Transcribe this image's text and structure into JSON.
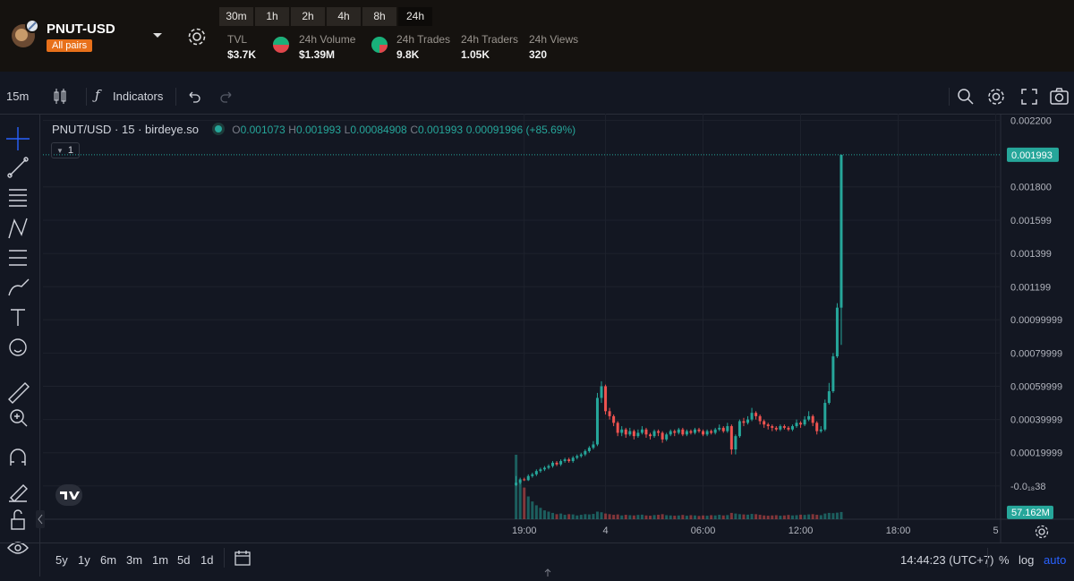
{
  "header": {
    "pair": "PNUT-USD",
    "badge": "All pairs",
    "timeframes": [
      "30m",
      "1h",
      "2h",
      "4h",
      "8h",
      "24h"
    ],
    "active_timeframe": 5,
    "stats": [
      {
        "label": "TVL",
        "value": "$3.7K"
      },
      {
        "label": "24h Volume",
        "value": "$1.39M"
      },
      {
        "label": "24h Trades",
        "value": "9.8K"
      },
      {
        "label": "24h Traders",
        "value": "1.05K"
      },
      {
        "label": "24h Views",
        "value": "320"
      }
    ]
  },
  "toolbar": {
    "interval": "15m",
    "indicators": "Indicators"
  },
  "legend": {
    "symbol": "PNUT/USD · 15 · birdeye.so",
    "letters": [
      "O",
      "H",
      "L",
      "C"
    ],
    "change": "0.00091996 (+85.69%)",
    "badge": "1"
  },
  "bottom_bar": {
    "ranges": [
      "5y",
      "1y",
      "6m",
      "3m",
      "1m",
      "5d",
      "1d"
    ],
    "clock": "14:44:23 (UTC+7)",
    "options": [
      "%",
      "log",
      "auto"
    ]
  },
  "chart_data": {
    "type": "candlestick",
    "up_color": "#26a69a",
    "down_color": "#ef5350",
    "grid": true,
    "x": [
      18.5,
      18.75,
      19,
      19.25,
      19.5,
      19.75,
      20,
      20.25,
      20.5,
      20.75,
      21,
      21.25,
      21.5,
      21.75,
      22,
      22.25,
      22.5,
      22.75,
      23,
      23.25,
      23.5,
      23.75,
      24,
      24.25,
      24.5,
      24.75,
      25,
      25.25,
      25.5,
      25.75,
      26,
      26.25,
      26.5,
      26.75,
      27,
      27.25,
      27.5,
      27.75,
      28,
      28.25,
      28.5,
      28.75,
      29,
      29.25,
      29.5,
      29.75,
      30,
      30.25,
      30.5,
      30.75,
      31,
      31.25,
      31.5,
      31.75,
      32,
      32.25,
      32.5,
      32.75,
      33,
      33.25,
      33.5,
      33.75,
      34,
      34.25,
      34.5,
      34.75,
      35,
      35.25,
      35.5,
      35.75,
      36,
      36.25,
      36.5,
      36.75,
      37,
      37.25,
      37.5,
      37.75,
      38,
      38.25,
      38.5
    ],
    "open": [
      5e-06,
      2e-05,
      4e-05,
      3.5e-05,
      6e-05,
      7e-05,
      9e-05,
      0.0001,
      0.00011,
      0.00012,
      0.00014,
      0.00013,
      0.00015,
      0.00016,
      0.00015,
      0.00017,
      0.00018,
      0.00019,
      0.00021,
      0.00023,
      0.00025,
      0.00053,
      0.0006,
      0.00045,
      0.00042,
      0.00038,
      0.00032,
      0.00034,
      0.00031,
      0.00033,
      0.0003,
      0.00032,
      0.00034,
      0.00031,
      0.0003,
      0.00033,
      0.00032,
      0.00028,
      0.00031,
      0.00033,
      0.00032,
      0.00034,
      0.00031,
      0.00033,
      0.00032,
      0.00034,
      0.00033,
      0.00031,
      0.00033,
      0.00032,
      0.00034,
      0.00035,
      0.00033,
      0.00036,
      0.00022,
      0.0003,
      0.00039,
      0.00038,
      0.0004,
      0.00044,
      0.00042,
      0.00039,
      0.00037,
      0.00036,
      0.00035,
      0.00034,
      0.00036,
      0.00035,
      0.00034,
      0.00036,
      0.00038,
      0.00037,
      0.0004,
      0.00042,
      0.00038,
      0.00033,
      0.00034,
      0.0005,
      0.00057,
      0.00078,
      0.001073
    ],
    "high": [
      6e-05,
      5e-05,
      5e-05,
      7e-05,
      8e-05,
      0.0001,
      0.00011,
      0.00012,
      0.00013,
      0.00015,
      0.00015,
      0.00016,
      0.00017,
      0.00017,
      0.00018,
      0.00019,
      0.0002,
      0.00022,
      0.00024,
      0.00027,
      0.00056,
      0.00063,
      0.00061,
      0.00047,
      0.00043,
      0.00039,
      0.00036,
      0.00035,
      0.00035,
      0.00034,
      0.00034,
      0.00036,
      0.00035,
      0.00032,
      0.00034,
      0.00034,
      0.00033,
      0.00032,
      0.00034,
      0.00034,
      0.00035,
      0.00035,
      0.00034,
      0.00034,
      0.00035,
      0.00035,
      0.00034,
      0.00034,
      0.00034,
      0.00035,
      0.00037,
      0.00036,
      0.00038,
      0.00037,
      0.00031,
      0.0004,
      0.00041,
      0.00042,
      0.00047,
      0.00045,
      0.00043,
      0.0004,
      0.00038,
      0.00037,
      0.00036,
      0.00037,
      0.00037,
      0.00036,
      0.00037,
      0.0004,
      0.00039,
      0.00042,
      0.00045,
      0.00043,
      0.00039,
      0.00036,
      0.00052,
      0.00062,
      0.0008,
      0.0011,
      0.001993
    ],
    "low": [
      0,
      1e-05,
      3e-05,
      3e-05,
      5e-05,
      6e-05,
      8e-05,
      9e-05,
      0.0001,
      0.00011,
      0.00012,
      0.00012,
      0.00014,
      0.00014,
      0.00014,
      0.00016,
      0.00017,
      0.00018,
      0.0002,
      0.00022,
      0.00024,
      0.0005,
      0.00043,
      0.0004,
      0.00036,
      0.0003,
      0.0003,
      0.00029,
      0.0003,
      0.00028,
      0.00029,
      0.00031,
      0.00029,
      0.00028,
      0.00029,
      0.0003,
      0.00026,
      0.00027,
      0.0003,
      0.0003,
      0.00031,
      0.0003,
      0.0003,
      0.00031,
      0.00031,
      0.00032,
      0.0003,
      0.0003,
      0.00031,
      0.00031,
      0.00033,
      0.00032,
      0.00032,
      0.00019,
      0.00019,
      0.00029,
      0.00036,
      0.00037,
      0.00039,
      0.0004,
      0.00037,
      0.00035,
      0.00034,
      0.00033,
      0.00033,
      0.00033,
      0.00034,
      0.00033,
      0.00033,
      0.00035,
      0.00035,
      0.00036,
      0.00039,
      0.00036,
      0.00031,
      0.00032,
      0.00033,
      0.00049,
      0.00056,
      0.00077,
      0.00084908
    ],
    "close": [
      2e-05,
      4e-05,
      3.5e-05,
      6e-05,
      7e-05,
      9e-05,
      0.0001,
      0.00011,
      0.00012,
      0.00014,
      0.00013,
      0.00015,
      0.00016,
      0.00015,
      0.00017,
      0.00018,
      0.00019,
      0.00021,
      0.00023,
      0.00025,
      0.00053,
      0.0006,
      0.00045,
      0.00042,
      0.00038,
      0.00032,
      0.00034,
      0.00031,
      0.00033,
      0.0003,
      0.00032,
      0.00034,
      0.00031,
      0.0003,
      0.00033,
      0.00032,
      0.00028,
      0.00031,
      0.00033,
      0.00032,
      0.00034,
      0.00031,
      0.00033,
      0.00032,
      0.00034,
      0.00033,
      0.00031,
      0.00033,
      0.00032,
      0.00034,
      0.00035,
      0.00033,
      0.00036,
      0.00022,
      0.0003,
      0.00039,
      0.00038,
      0.0004,
      0.00044,
      0.00042,
      0.00039,
      0.00037,
      0.00036,
      0.00035,
      0.00034,
      0.00036,
      0.00035,
      0.00034,
      0.00036,
      0.00038,
      0.00037,
      0.0004,
      0.00042,
      0.00038,
      0.00033,
      0.00034,
      0.0005,
      0.00057,
      0.00078,
      0.001073,
      0.001993
    ],
    "volume": [
      509000000,
      290000000,
      250000000,
      180000000,
      140000000,
      110000000,
      90000000,
      70000000,
      60000000,
      50000000,
      40000000,
      45000000,
      35000000,
      40000000,
      38000000,
      30000000,
      35000000,
      40000000,
      38000000,
      42000000,
      60000000,
      55000000,
      45000000,
      40000000,
      35000000,
      38000000,
      30000000,
      35000000,
      32000000,
      30000000,
      34000000,
      36000000,
      30000000,
      28000000,
      33000000,
      35000000,
      40000000,
      32000000,
      30000000,
      28000000,
      30000000,
      34000000,
      28000000,
      32000000,
      30000000,
      26000000,
      30000000,
      28000000,
      32000000,
      30000000,
      35000000,
      30000000,
      33000000,
      50000000,
      45000000,
      40000000,
      38000000,
      36000000,
      42000000,
      40000000,
      35000000,
      30000000,
      28000000,
      30000000,
      32000000,
      28000000,
      30000000,
      34000000,
      30000000,
      32000000,
      36000000,
      34000000,
      38000000,
      40000000,
      35000000,
      32000000,
      45000000,
      50000000,
      48000000,
      52000000,
      57162000
    ],
    "last_volume_label": "57.162M",
    "volume_lim": [
      0,
      3200000000
    ],
    "xlim": [
      -10.6,
      48.3
    ],
    "xticks": [
      {
        "value": 19,
        "label": "19:00"
      },
      {
        "value": 24,
        "label": "4"
      },
      {
        "value": 30,
        "label": "06:00"
      },
      {
        "value": 36,
        "label": "12:00"
      },
      {
        "value": 42,
        "label": "18:00"
      },
      {
        "value": 48,
        "label": "5"
      }
    ],
    "ylim": [
      -0.0002,
      0.00224
    ],
    "yticks": [
      {
        "value": 0.0022,
        "label": "0.002200"
      },
      {
        "value": 0.0018,
        "label": "0.001800"
      },
      0.001599,
      0.001399,
      0.001199,
      0.00099999,
      0.00079999,
      0.00059999,
      0.00039999,
      0.00019999,
      {
        "value": -3.8e-19,
        "label": "-0.0₁₈38"
      }
    ]
  }
}
